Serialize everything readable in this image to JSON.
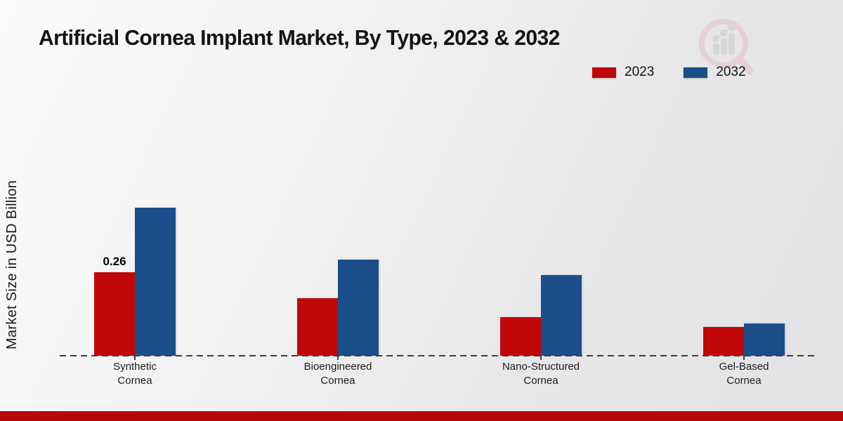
{
  "page": {
    "title": "Artificial Cornea Implant Market, By Type, 2023 & 2032",
    "y_axis_label": "Market Size in USD Billion"
  },
  "colors": {
    "series_2023": "#c10808",
    "series_2032": "#1a4e8b",
    "footer_strip": "#b50808",
    "axis_line": "#3e3e3e"
  },
  "watermark": {
    "icon": "magnifier-bar-chart-logo"
  },
  "chart_data": {
    "type": "bar",
    "title": "Artificial Cornea Implant Market, By Type, 2023 & 2032",
    "xlabel": "",
    "ylabel": "Market Size in USD Billion",
    "categories": [
      "Synthetic Cornea",
      "Bioengineered Cornea",
      "Nano-Structured Cornea",
      "Gel-Based Cornea"
    ],
    "series": [
      {
        "name": "2023",
        "color": "#c10808",
        "values": [
          0.26,
          0.18,
          0.12,
          0.09
        ]
      },
      {
        "name": "2032",
        "color": "#1a4e8b",
        "values": [
          0.46,
          0.3,
          0.25,
          0.1
        ]
      }
    ],
    "ylim": [
      0,
      0.5
    ],
    "grid": false,
    "y_axis_ticks_visible": false,
    "legend_position": "top-right",
    "annotations": [
      {
        "series": "2023",
        "category": "Synthetic Cornea",
        "text": "0.26"
      }
    ]
  }
}
